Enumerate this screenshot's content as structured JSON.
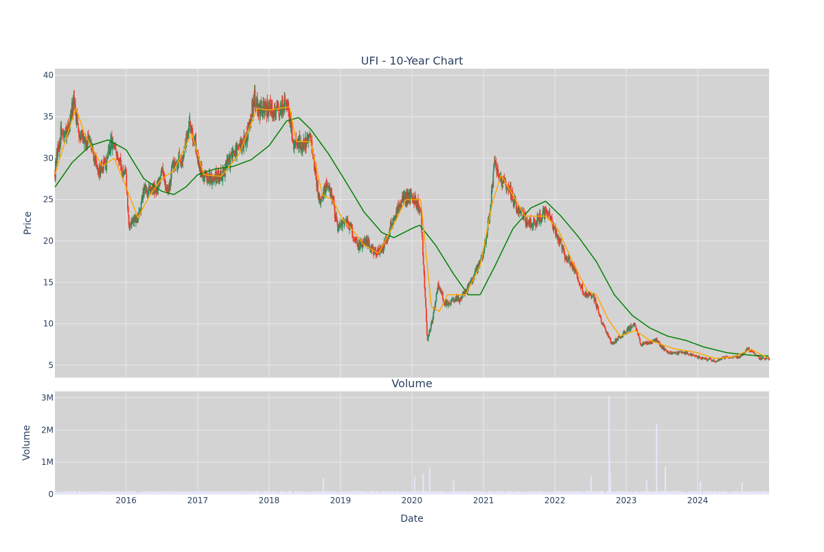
{
  "colors": {
    "plot_bg": "#d3d3d3",
    "grid": "#e8e8ee",
    "text": "#2a3f5f",
    "candle_up": "#2e8b57",
    "candle_down": "#ef3b2c",
    "ma_short": "#ffa500",
    "ma_long": "#008000",
    "volume": "#e6e6fa"
  },
  "chart_data": [
    {
      "type": "candlestick",
      "title": "UFI - 10-Year Chart",
      "xlabel": "",
      "ylabel": "Price",
      "ylim": [
        3.5,
        40.8
      ],
      "yticks": [
        5,
        10,
        15,
        20,
        25,
        30,
        35,
        40
      ],
      "xlim": [
        "2015-01-02",
        "2024-12-31"
      ],
      "grid": true,
      "price_anchors": [
        [
          "2015-01-02",
          28.5
        ],
        [
          "2015-02-01",
          33.0
        ],
        [
          "2015-03-01",
          32.5
        ],
        [
          "2015-04-10",
          36.8
        ],
        [
          "2015-05-01",
          33.5
        ],
        [
          "2015-06-01",
          32.5
        ],
        [
          "2015-07-01",
          31.5
        ],
        [
          "2015-08-15",
          28.5
        ],
        [
          "2015-09-15",
          29.0
        ],
        [
          "2015-10-20",
          32.0
        ],
        [
          "2015-11-15",
          30.0
        ],
        [
          "2015-12-31",
          27.5
        ],
        [
          "2016-01-15",
          22.0
        ],
        [
          "2016-03-01",
          22.5
        ],
        [
          "2016-04-01",
          26.0
        ],
        [
          "2016-05-01",
          26.5
        ],
        [
          "2016-06-01",
          26.0
        ],
        [
          "2016-07-01",
          28.5
        ],
        [
          "2016-08-01",
          26.0
        ],
        [
          "2016-09-01",
          29.5
        ],
        [
          "2016-10-15",
          30.0
        ],
        [
          "2016-11-20",
          34.0
        ],
        [
          "2016-12-15",
          32.5
        ],
        [
          "2017-01-15",
          28.5
        ],
        [
          "2017-03-01",
          27.5
        ],
        [
          "2017-05-01",
          28.0
        ],
        [
          "2017-07-01",
          30.5
        ],
        [
          "2017-09-01",
          32.0
        ],
        [
          "2017-10-20",
          37.5
        ],
        [
          "2017-11-15",
          36.0
        ],
        [
          "2018-01-01",
          36.0
        ],
        [
          "2018-02-15",
          35.5
        ],
        [
          "2018-04-01",
          37.0
        ],
        [
          "2018-05-01",
          32.0
        ],
        [
          "2018-06-15",
          31.5
        ],
        [
          "2018-08-01",
          32.5
        ],
        [
          "2018-09-15",
          25.0
        ],
        [
          "2018-11-01",
          27.0
        ],
        [
          "2018-12-20",
          21.5
        ],
        [
          "2019-02-01",
          22.5
        ],
        [
          "2019-04-01",
          19.5
        ],
        [
          "2019-05-15",
          20.0
        ],
        [
          "2019-07-01",
          18.5
        ],
        [
          "2019-08-15",
          19.5
        ],
        [
          "2019-10-01",
          23.0
        ],
        [
          "2019-11-15",
          25.0
        ],
        [
          "2019-12-31",
          25.5
        ],
        [
          "2020-02-15",
          24.0
        ],
        [
          "2020-03-20",
          8.0
        ],
        [
          "2020-04-15",
          10.5
        ],
        [
          "2020-05-15",
          15.0
        ],
        [
          "2020-06-15",
          12.5
        ],
        [
          "2020-09-01",
          13.0
        ],
        [
          "2020-11-01",
          15.0
        ],
        [
          "2020-12-31",
          18.5
        ],
        [
          "2021-02-01",
          23.0
        ],
        [
          "2021-02-25",
          29.5
        ],
        [
          "2021-04-01",
          27.5
        ],
        [
          "2021-05-15",
          26.0
        ],
        [
          "2021-07-01",
          23.5
        ],
        [
          "2021-09-01",
          22.0
        ],
        [
          "2021-11-15",
          23.5
        ],
        [
          "2022-01-01",
          21.5
        ],
        [
          "2022-02-15",
          18.5
        ],
        [
          "2022-04-15",
          16.5
        ],
        [
          "2022-06-01",
          13.5
        ],
        [
          "2022-07-15",
          13.5
        ],
        [
          "2022-09-01",
          10.0
        ],
        [
          "2022-10-20",
          7.5
        ],
        [
          "2022-12-01",
          8.5
        ],
        [
          "2023-02-15",
          10.0
        ],
        [
          "2023-03-15",
          7.5
        ],
        [
          "2023-06-01",
          8.0
        ],
        [
          "2023-08-01",
          6.5
        ],
        [
          "2023-11-01",
          6.5
        ],
        [
          "2024-01-01",
          6.0
        ],
        [
          "2024-04-01",
          5.5
        ],
        [
          "2024-06-01",
          6.0
        ],
        [
          "2024-08-01",
          6.0
        ],
        [
          "2024-09-15",
          7.0
        ],
        [
          "2024-11-15",
          5.8
        ],
        [
          "2024-12-31",
          5.8
        ]
      ],
      "sma_short_anchors": [
        [
          "2015-01-02",
          28.0
        ],
        [
          "2015-03-01",
          32.5
        ],
        [
          "2015-04-20",
          36.0
        ],
        [
          "2015-06-01",
          33.0
        ],
        [
          "2015-09-01",
          29.0
        ],
        [
          "2015-11-01",
          30.0
        ],
        [
          "2016-01-01",
          26.5
        ],
        [
          "2016-03-01",
          22.8
        ],
        [
          "2016-05-01",
          25.5
        ],
        [
          "2016-07-01",
          27.5
        ],
        [
          "2016-09-01",
          28.5
        ],
        [
          "2016-12-01",
          33.0
        ],
        [
          "2017-02-01",
          28.0
        ],
        [
          "2017-05-01",
          27.8
        ],
        [
          "2017-08-01",
          30.5
        ],
        [
          "2017-11-01",
          36.0
        ],
        [
          "2018-01-01",
          35.8
        ],
        [
          "2018-04-15",
          36.2
        ],
        [
          "2018-05-20",
          32.0
        ],
        [
          "2018-08-01",
          32.0
        ],
        [
          "2018-10-01",
          25.5
        ],
        [
          "2018-11-20",
          25.0
        ],
        [
          "2019-01-15",
          22.5
        ],
        [
          "2019-03-15",
          21.0
        ],
        [
          "2019-05-01",
          19.5
        ],
        [
          "2019-07-15",
          18.5
        ],
        [
          "2019-10-01",
          22.0
        ],
        [
          "2019-12-01",
          25.0
        ],
        [
          "2020-02-15",
          25.0
        ],
        [
          "2020-04-10",
          12.0
        ],
        [
          "2020-05-20",
          11.5
        ],
        [
          "2020-07-01",
          13.5
        ],
        [
          "2020-10-01",
          13.5
        ],
        [
          "2020-12-15",
          17.0
        ],
        [
          "2021-02-15",
          24.5
        ],
        [
          "2021-04-01",
          28.0
        ],
        [
          "2021-06-01",
          25.5
        ],
        [
          "2021-08-01",
          23.0
        ],
        [
          "2021-11-15",
          23.0
        ],
        [
          "2022-01-15",
          21.5
        ],
        [
          "2022-04-01",
          17.5
        ],
        [
          "2022-06-15",
          14.0
        ],
        [
          "2022-08-01",
          13.5
        ],
        [
          "2022-10-01",
          10.5
        ],
        [
          "2022-12-01",
          8.5
        ],
        [
          "2023-02-15",
          9.2
        ],
        [
          "2023-05-01",
          8.0
        ],
        [
          "2023-09-01",
          7.0
        ],
        [
          "2024-01-01",
          6.5
        ],
        [
          "2024-04-01",
          5.8
        ],
        [
          "2024-07-01",
          6.0
        ],
        [
          "2024-10-01",
          6.9
        ],
        [
          "2024-12-31",
          5.8
        ]
      ],
      "sma_long_anchors": [
        [
          "2015-01-02",
          26.5
        ],
        [
          "2015-04-01",
          29.5
        ],
        [
          "2015-07-01",
          31.5
        ],
        [
          "2015-10-01",
          32.2
        ],
        [
          "2016-01-01",
          31.0
        ],
        [
          "2016-04-01",
          27.5
        ],
        [
          "2016-07-01",
          26.0
        ],
        [
          "2016-09-01",
          25.6
        ],
        [
          "2016-11-01",
          26.5
        ],
        [
          "2017-01-01",
          28.0
        ],
        [
          "2017-04-01",
          28.7
        ],
        [
          "2017-07-01",
          29.0
        ],
        [
          "2017-10-01",
          29.8
        ],
        [
          "2018-01-01",
          31.5
        ],
        [
          "2018-04-01",
          34.5
        ],
        [
          "2018-06-01",
          34.9
        ],
        [
          "2018-08-01",
          33.5
        ],
        [
          "2018-11-01",
          30.5
        ],
        [
          "2019-02-01",
          27.0
        ],
        [
          "2019-05-01",
          23.5
        ],
        [
          "2019-08-01",
          21.0
        ],
        [
          "2019-10-01",
          20.4
        ],
        [
          "2020-01-01",
          21.5
        ],
        [
          "2020-02-10",
          21.9
        ],
        [
          "2020-05-01",
          19.5
        ],
        [
          "2020-08-01",
          16.0
        ],
        [
          "2020-10-15",
          13.5
        ],
        [
          "2020-12-15",
          13.5
        ],
        [
          "2021-03-01",
          17.0
        ],
        [
          "2021-06-01",
          21.5
        ],
        [
          "2021-09-01",
          24.0
        ],
        [
          "2021-11-15",
          24.8
        ],
        [
          "2022-02-01",
          23.0
        ],
        [
          "2022-05-01",
          20.5
        ],
        [
          "2022-08-01",
          17.5
        ],
        [
          "2022-11-01",
          13.5
        ],
        [
          "2023-02-01",
          11.0
        ],
        [
          "2023-05-01",
          9.5
        ],
        [
          "2023-08-01",
          8.5
        ],
        [
          "2023-11-01",
          8.0
        ],
        [
          "2024-02-01",
          7.2
        ],
        [
          "2024-06-01",
          6.5
        ],
        [
          "2024-10-01",
          6.2
        ],
        [
          "2024-12-31",
          6.1
        ]
      ]
    },
    {
      "type": "bar",
      "title": "Volume",
      "xlabel": "Date",
      "ylabel": "Volume",
      "ylim": [
        0,
        3200000
      ],
      "yticks": [
        0,
        1000000,
        2000000,
        3000000
      ],
      "ytick_labels": [
        "0",
        "1M",
        "2M",
        "3M"
      ],
      "x_tick_labels": [
        "2016",
        "2017",
        "2018",
        "2019",
        "2020",
        "2021",
        "2022",
        "2023",
        "2024"
      ],
      "grid": true,
      "baseline": 75000,
      "spikes": [
        [
          "2018-10-05",
          500000
        ],
        [
          "2020-01-15",
          550000
        ],
        [
          "2020-02-28",
          650000
        ],
        [
          "2020-04-01",
          820000
        ],
        [
          "2020-08-01",
          420000
        ],
        [
          "2022-07-05",
          570000
        ],
        [
          "2022-10-05",
          3050000
        ],
        [
          "2022-10-07",
          1100000
        ],
        [
          "2022-10-11",
          650000
        ],
        [
          "2023-04-15",
          450000
        ],
        [
          "2023-06-05",
          2200000
        ],
        [
          "2023-07-20",
          850000
        ],
        [
          "2024-01-15",
          400000
        ],
        [
          "2024-08-15",
          380000
        ]
      ]
    }
  ]
}
